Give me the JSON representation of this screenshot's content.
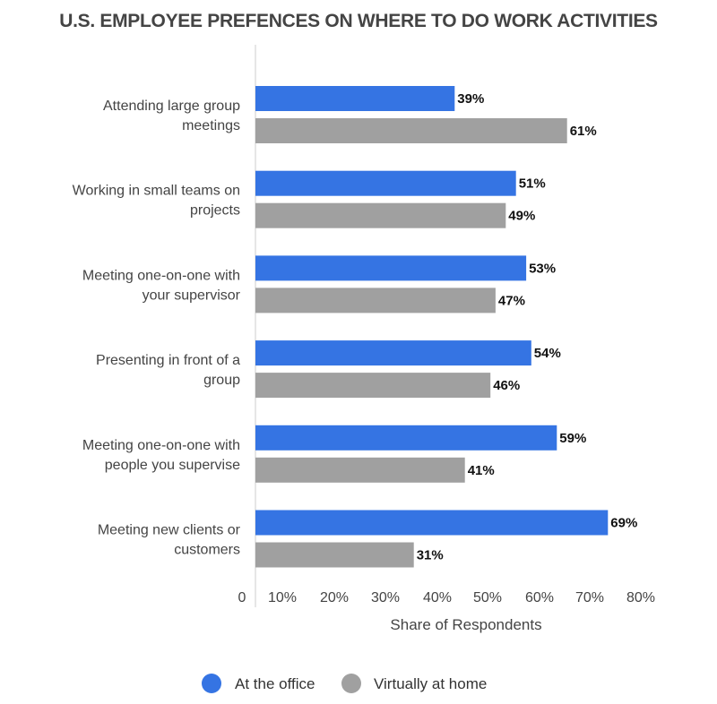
{
  "chart_data": {
    "type": "bar",
    "orientation": "horizontal",
    "title": "U.S. EMPLOYEE PREFENCES ON WHERE TO DO WORK ACTIVITIES",
    "xlabel": "Share of Respondents",
    "ylabel": "",
    "xlim": [
      0,
      80
    ],
    "x_ticks": [
      "0",
      "10%",
      "20%",
      "30%",
      "40%",
      "50%",
      "60%",
      "70%",
      "80%"
    ],
    "categories": [
      [
        "Attending large group",
        "meetings"
      ],
      [
        "Working in small teams on",
        "projects"
      ],
      [
        "Meeting one-on-one with",
        "your supervisor"
      ],
      [
        "Presenting in front of a",
        "group"
      ],
      [
        "Meeting one-on-one with",
        "people you supervise"
      ],
      [
        "Meeting new clients or",
        "customers"
      ]
    ],
    "series": [
      {
        "name": "At the office",
        "color": "#3574e3",
        "values": [
          39,
          51,
          53,
          54,
          59,
          69
        ]
      },
      {
        "name": "Virtually at home",
        "color": "#a0a0a0",
        "values": [
          61,
          49,
          47,
          46,
          41,
          31
        ]
      }
    ],
    "value_suffix": "%",
    "legend_position": "bottom",
    "grid": false
  }
}
